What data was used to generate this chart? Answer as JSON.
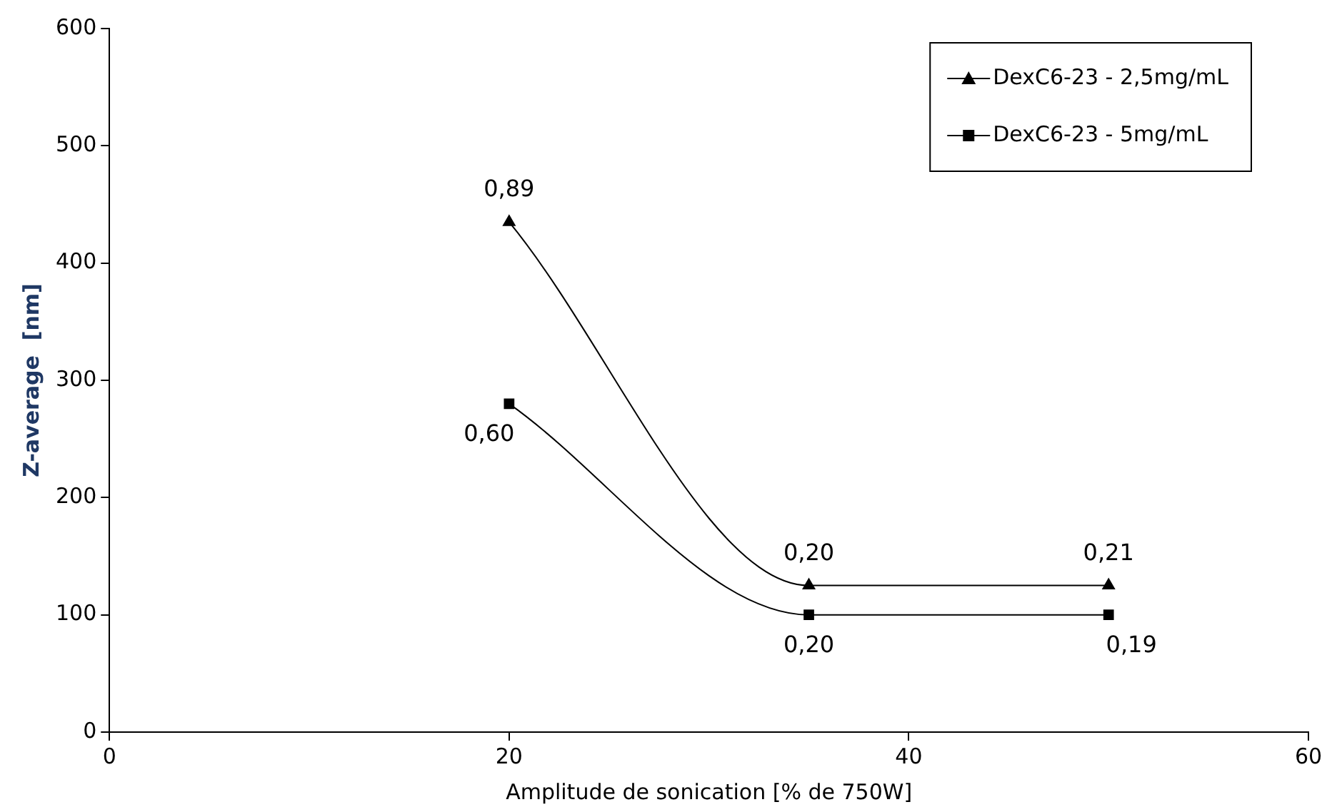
{
  "chart_data": {
    "type": "line",
    "xlabel": "Amplitude de sonication [% de 750W]",
    "ylabel": "Z-average  [nm]",
    "xlim": [
      0,
      60
    ],
    "xticks": [
      0,
      20,
      40,
      60
    ],
    "ylim": [
      0,
      600
    ],
    "yticks": [
      0,
      100,
      200,
      300,
      400,
      500,
      600
    ],
    "grid": false,
    "legend": "top right",
    "series": [
      {
        "name": "DexC6-23 - 2,5mg/mL",
        "color": "#000000",
        "marker": "triangle",
        "x": [
          20,
          35,
          50
        ],
        "values": [
          435,
          125,
          125
        ]
      },
      {
        "name": "DexC6-23 - 5mg/mL",
        "color": "#000000",
        "marker": "square",
        "x": [
          20,
          35,
          50
        ],
        "values": [
          280,
          100,
          100
        ]
      }
    ],
    "annotations": [
      {
        "text": "0,89",
        "x": 20,
        "y": 435
      },
      {
        "text": "0,20",
        "x": 35,
        "y": 125
      },
      {
        "text": "0,21",
        "x": 50,
        "y": 125
      },
      {
        "text": "0,60",
        "x": 20,
        "y": 280
      },
      {
        "text": "0,20",
        "x": 35,
        "y": 100
      },
      {
        "text": "0,19",
        "x": 50,
        "y": 100
      }
    ]
  }
}
